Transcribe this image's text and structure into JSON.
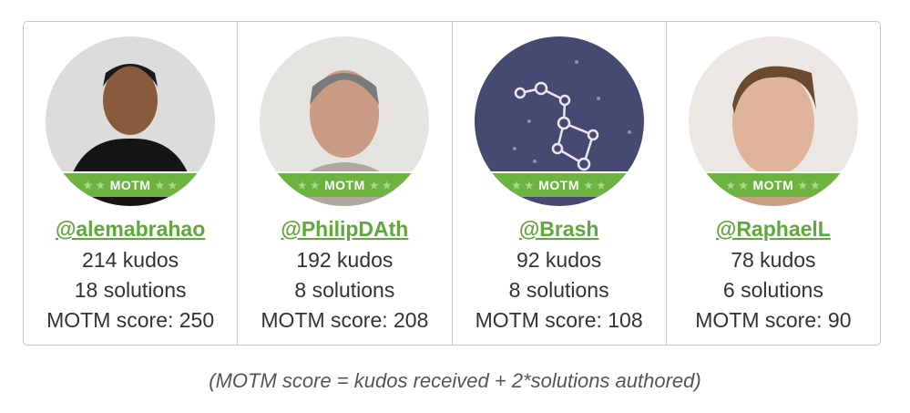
{
  "members": [
    {
      "handle": "@alemabrahao",
      "kudos": "214 kudos",
      "solutions": "18 solutions",
      "score": "MOTM score: 250",
      "avatar": "photo",
      "bg": "#d9d9d9",
      "badge": "MOTM"
    },
    {
      "handle": "@PhilipDAth",
      "kudos": "192 kudos",
      "solutions": "8 solutions",
      "score": "MOTM score: 208",
      "avatar": "photo",
      "bg": "#e4e2e0",
      "badge": "MOTM"
    },
    {
      "handle": "@Brash",
      "kudos": "92 kudos",
      "solutions": "8 solutions",
      "score": "MOTM score: 108",
      "avatar": "constellation-icon",
      "bg": "#464a73",
      "badge": "MOTM"
    },
    {
      "handle": "@RaphaelL",
      "kudos": "78 kudos",
      "solutions": "6 solutions",
      "score": "MOTM score: 90",
      "avatar": "photo",
      "bg": "#e8e6e2",
      "badge": "MOTM"
    }
  ],
  "caption": "(MOTM score = kudos received + 2*solutions authored)",
  "colors": {
    "accent": "#6cb33f",
    "link": "#5fa83a"
  }
}
